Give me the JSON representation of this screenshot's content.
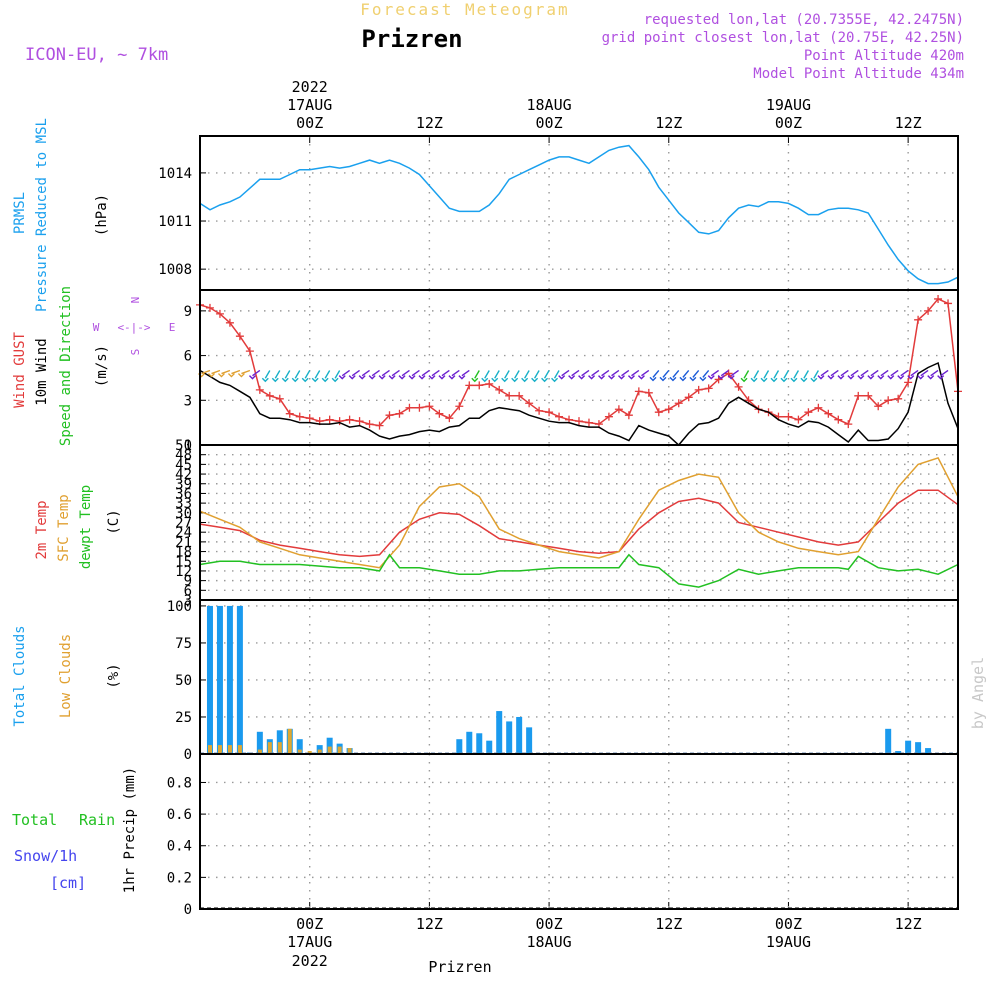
{
  "header": {
    "title_small": "Forecast Meteogram",
    "station": "Prizren",
    "model": "ICON-EU, ~ 7km",
    "requested": "requested lon,lat (20.7355E, 42.2475N)",
    "grid_point": "grid point closest lon,lat (20.75E, 42.25N)",
    "point_altitude": "Point Altitude 420m",
    "model_altitude": "Model Point Altitude 434m"
  },
  "footer": {
    "station": "Prizren",
    "watermark": "by Angel"
  },
  "time_axis": {
    "top_year": "2022",
    "bottom_year": "2022",
    "ticks": [
      {
        "label": "00Z",
        "date": "17AUG",
        "hour": 0
      },
      {
        "label": "12Z",
        "date": "",
        "hour": 12
      },
      {
        "label": "00Z",
        "date": "18AUG",
        "hour": 24
      },
      {
        "label": "12Z",
        "date": "",
        "hour": 36
      },
      {
        "label": "00Z",
        "date": "19AUG",
        "hour": 48
      },
      {
        "label": "12Z",
        "date": "",
        "hour": 60
      }
    ],
    "start_hour": -11,
    "end_hour": 65
  },
  "panel_labels": {
    "prmsl": "PRMSL",
    "pressure_msl": "Pressure Reduced to MSL",
    "hpa": "(hPa)",
    "wind_gust": "Wind GUST",
    "wind_10m": "10m Wind",
    "speed_dir": "Speed and Direction",
    "ms": "(m/s)",
    "t2m": "2m Temp",
    "sfc_temp": "SFC Temp",
    "dewpt": "dewpt Temp",
    "celsius": "(C)",
    "total_clouds": "Total Clouds",
    "low_clouds": "Low Clouds",
    "percent": "(%)",
    "total": "Total",
    "rain": "Rain",
    "snow": "Snow/1h",
    "cm": "[cm]",
    "precip": "1hr Precip (mm)"
  },
  "compass": {
    "n": "N",
    "s": "S",
    "e": "E",
    "w": "W",
    "arrow": "<-|->"
  },
  "colors": {
    "pressure": "#1aa0ee",
    "gust": "#e23b3b",
    "wind": "#000000",
    "temp2m": "#e23b3b",
    "sfc": "#e0a030",
    "dewpt": "#22c022",
    "total_clouds": "#1a9aee",
    "low_clouds": "#e0a830",
    "rain": "#22c022",
    "snow": "#4444ee",
    "purple": "#b050e0"
  },
  "chart_data": [
    {
      "type": "line",
      "title": "PRMSL Pressure Reduced to MSL",
      "ylabel": "(hPa)",
      "ylim": [
        1006.7,
        1016.3
      ],
      "yticks": [
        1008,
        1011,
        1014
      ],
      "grid": true,
      "series": [
        {
          "name": "PRMSL",
          "x": [
            -11,
            -10,
            -9,
            -8,
            -7,
            -5,
            -4,
            -3,
            -2,
            -1,
            0,
            1,
            2,
            3,
            4,
            5,
            6,
            7,
            8,
            9,
            10,
            11,
            12,
            13,
            14,
            15,
            16,
            17,
            18,
            19,
            20,
            21,
            22,
            23,
            24,
            25,
            26,
            27,
            28,
            29,
            30,
            31,
            32,
            33,
            34,
            35,
            36,
            37,
            38,
            39,
            40,
            41,
            42,
            43,
            44,
            45,
            46,
            47,
            48,
            49,
            50,
            51,
            52,
            53,
            54,
            55,
            56,
            57,
            58,
            59,
            60,
            61,
            62,
            63,
            64,
            65
          ],
          "values": [
            1012.1,
            1011.7,
            1012.0,
            1012.2,
            1012.5,
            1013.6,
            1013.6,
            1013.6,
            1013.9,
            1014.2,
            1014.2,
            1014.3,
            1014.4,
            1014.3,
            1014.4,
            1014.6,
            1014.8,
            1014.6,
            1014.8,
            1014.6,
            1014.3,
            1013.9,
            1013.2,
            1012.5,
            1011.8,
            1011.6,
            1011.6,
            1011.6,
            1012.0,
            1012.7,
            1013.6,
            1013.9,
            1014.2,
            1014.5,
            1014.8,
            1015.0,
            1015.0,
            1014.8,
            1014.6,
            1015.0,
            1015.4,
            1015.6,
            1015.7,
            1015.0,
            1014.2,
            1013.1,
            1012.3,
            1011.5,
            1010.9,
            1010.3,
            1010.2,
            1010.4,
            1011.2,
            1011.8,
            1012.0,
            1011.9,
            1012.2,
            1012.2,
            1012.1,
            1011.8,
            1011.4,
            1011.4,
            1011.7,
            1011.8,
            1011.8,
            1011.7,
            1011.5,
            1010.5,
            1009.5,
            1008.6,
            1007.9,
            1007.4,
            1007.1,
            1007.1,
            1007.2,
            1007.5
          ]
        }
      ]
    },
    {
      "type": "line",
      "title": "Wind GUST / 10m Wind Speed and Direction",
      "ylabel": "(m/s)",
      "ylim": [
        0,
        10.4
      ],
      "yticks": [
        0,
        3,
        6,
        9
      ],
      "grid": true,
      "series": [
        {
          "name": "Wind GUST",
          "x": [
            -11,
            -10,
            -9,
            -8,
            -7,
            -6,
            -5,
            -4,
            -3,
            -2,
            -1,
            0,
            1,
            2,
            3,
            4,
            5,
            6,
            7,
            8,
            9,
            10,
            11,
            12,
            13,
            14,
            15,
            16,
            17,
            18,
            19,
            20,
            21,
            22,
            23,
            24,
            25,
            26,
            27,
            28,
            29,
            30,
            31,
            32,
            33,
            34,
            35,
            36,
            37,
            38,
            39,
            40,
            41,
            42,
            43,
            44,
            45,
            46,
            47,
            48,
            49,
            50,
            51,
            52,
            53,
            54,
            55,
            56,
            57,
            58,
            59,
            60,
            61,
            62,
            63,
            64,
            65
          ],
          "values": [
            9.4,
            9.2,
            8.8,
            8.2,
            7.3,
            6.3,
            3.7,
            3.3,
            3.1,
            2.1,
            1.9,
            1.8,
            1.6,
            1.7,
            1.6,
            1.7,
            1.6,
            1.4,
            1.3,
            2.0,
            2.1,
            2.5,
            2.5,
            2.6,
            2.1,
            1.8,
            2.6,
            4.0,
            4.0,
            4.1,
            3.7,
            3.3,
            3.3,
            2.8,
            2.3,
            2.2,
            1.9,
            1.7,
            1.6,
            1.5,
            1.4,
            1.9,
            2.4,
            2.0,
            3.6,
            3.5,
            2.2,
            2.4,
            2.8,
            3.2,
            3.7,
            3.8,
            4.4,
            4.8,
            3.9,
            3.0,
            2.4,
            2.2,
            1.9,
            1.9,
            1.7,
            2.2,
            2.5,
            2.1,
            1.7,
            1.4,
            3.3,
            3.3,
            2.6,
            3.0,
            3.1,
            4.2,
            8.4,
            9.0,
            9.8,
            9.5,
            3.6
          ]
        },
        {
          "name": "10m Wind",
          "x": [
            -11,
            -10,
            -9,
            -8,
            -7,
            -6,
            -5,
            -4,
            -3,
            -2,
            -1,
            0,
            1,
            2,
            3,
            4,
            5,
            6,
            7,
            8,
            9,
            10,
            11,
            12,
            13,
            14,
            15,
            16,
            17,
            18,
            19,
            20,
            21,
            22,
            23,
            24,
            25,
            26,
            27,
            28,
            29,
            30,
            31,
            32,
            33,
            34,
            35,
            36,
            37,
            38,
            39,
            40,
            41,
            42,
            43,
            44,
            45,
            46,
            47,
            48,
            49,
            50,
            51,
            52,
            53,
            54,
            55,
            56,
            57,
            58,
            59,
            60,
            61,
            62,
            63,
            64,
            65
          ],
          "values": [
            5.0,
            4.6,
            4.2,
            4.0,
            3.6,
            3.2,
            2.1,
            1.8,
            1.8,
            1.7,
            1.5,
            1.5,
            1.4,
            1.4,
            1.5,
            1.2,
            1.3,
            1.0,
            0.6,
            0.4,
            0.6,
            0.7,
            0.9,
            1.0,
            0.9,
            1.2,
            1.3,
            1.8,
            1.8,
            2.3,
            2.5,
            2.4,
            2.3,
            2.0,
            1.8,
            1.6,
            1.5,
            1.5,
            1.3,
            1.2,
            1.2,
            0.8,
            0.6,
            0.3,
            1.3,
            1.0,
            0.8,
            0.6,
            0.0,
            0.8,
            1.4,
            1.5,
            1.8,
            2.8,
            3.2,
            2.8,
            2.4,
            2.2,
            1.7,
            1.4,
            1.2,
            1.6,
            1.5,
            1.2,
            0.7,
            0.2,
            1.0,
            0.3,
            0.3,
            0.4,
            1.1,
            2.2,
            4.8,
            5.2,
            5.5,
            2.8,
            1.1
          ]
        }
      ]
    },
    {
      "type": "line",
      "title": "2m Temp / SFC Temp / dewpt Temp",
      "ylabel": "(C)",
      "ylim": [
        3,
        51
      ],
      "yticks": [
        3,
        6,
        9,
        12,
        15,
        18,
        21,
        24,
        27,
        30,
        33,
        36,
        39,
        42,
        45,
        48,
        51
      ],
      "grid": true,
      "series": [
        {
          "name": "2m Temp",
          "x": [
            -11,
            -9,
            -7,
            -5,
            -3,
            -1,
            1,
            3,
            5,
            7,
            9,
            11,
            13,
            15,
            17,
            19,
            21,
            23,
            25,
            27,
            29,
            31,
            33,
            35,
            37,
            39,
            41,
            43,
            45,
            47,
            49,
            51,
            53,
            55,
            57,
            59,
            61,
            63,
            65
          ],
          "values": [
            26.5,
            25.5,
            24.5,
            21.5,
            20,
            19,
            18,
            17,
            16.5,
            17,
            24,
            28,
            30,
            29.5,
            26,
            22,
            21,
            20,
            19,
            18,
            17.5,
            18,
            25,
            30,
            33.5,
            34.5,
            33,
            27,
            25.5,
            24,
            22.5,
            21,
            20,
            21,
            27,
            33,
            37,
            37,
            32.5
          ]
        },
        {
          "name": "SFC Temp",
          "x": [
            -11,
            -9,
            -7,
            -5,
            -3,
            -1,
            1,
            3,
            5,
            7,
            9,
            11,
            13,
            15,
            17,
            19,
            21,
            23,
            25,
            27,
            29,
            31,
            33,
            35,
            37,
            39,
            41,
            43,
            45,
            47,
            49,
            51,
            53,
            55,
            57,
            59,
            61,
            63,
            65
          ],
          "values": [
            30.5,
            28,
            25.5,
            21,
            19,
            17,
            16,
            15,
            14,
            13,
            20,
            32,
            38,
            39,
            35,
            25,
            22,
            20,
            18,
            17,
            16,
            18,
            28,
            37,
            40,
            42,
            41,
            30,
            24,
            21,
            19,
            18,
            17,
            18,
            28,
            38,
            45,
            47,
            35
          ]
        },
        {
          "name": "dewpt Temp",
          "x": [
            -11,
            -9,
            -7,
            -5,
            -3,
            -1,
            1,
            3,
            5,
            7,
            8,
            9,
            11,
            13,
            15,
            17,
            19,
            21,
            23,
            25,
            27,
            29,
            31,
            32,
            33,
            35,
            37,
            39,
            41,
            43,
            45,
            47,
            49,
            51,
            53,
            54,
            55,
            57,
            59,
            61,
            63,
            65
          ],
          "values": [
            14,
            15,
            15,
            14,
            14,
            14,
            13.5,
            13,
            13,
            12,
            17,
            13,
            13,
            12,
            11,
            11,
            12,
            12,
            12.5,
            13,
            13,
            13,
            13,
            17,
            14,
            13,
            8,
            7,
            9,
            12.5,
            11,
            12,
            13,
            13,
            13,
            12.5,
            16.5,
            13,
            12,
            12.5,
            11,
            14
          ]
        }
      ]
    },
    {
      "type": "bar",
      "title": "Total Clouds / Low Clouds",
      "ylabel": "(%)",
      "ylim": [
        0,
        104
      ],
      "yticks": [
        0,
        25,
        50,
        75,
        100
      ],
      "grid": true,
      "series": [
        {
          "name": "Total Clouds",
          "x": [
            -10,
            -9,
            -8,
            -7,
            -6,
            -5,
            -4,
            -3,
            -2,
            -1,
            0,
            1,
            2,
            3,
            4,
            15,
            16,
            17,
            18,
            19,
            20,
            21,
            22,
            58,
            59,
            60,
            61,
            62
          ],
          "values": [
            100,
            100,
            100,
            100,
            1,
            15,
            10,
            16,
            17,
            10,
            1,
            6,
            11,
            7,
            4,
            10,
            15,
            14,
            9,
            29,
            22,
            25,
            18,
            17,
            2,
            9,
            8,
            4
          ]
        },
        {
          "name": "Low Clouds",
          "x": [
            -10,
            -9,
            -8,
            -7,
            -5,
            -4,
            -3,
            -2,
            -1,
            0,
            1,
            2,
            3,
            4
          ],
          "values": [
            6,
            6,
            6,
            6,
            3,
            8,
            8,
            17,
            3,
            2,
            3,
            5,
            5,
            4
          ]
        }
      ]
    },
    {
      "type": "bar",
      "title": "Total Rain / Snow",
      "ylabel": "1hr Precip (mm)",
      "ylim": [
        0,
        0.98
      ],
      "yticks": [
        0,
        0.2,
        0.4,
        0.6,
        0.8
      ],
      "grid": true,
      "series": []
    }
  ]
}
